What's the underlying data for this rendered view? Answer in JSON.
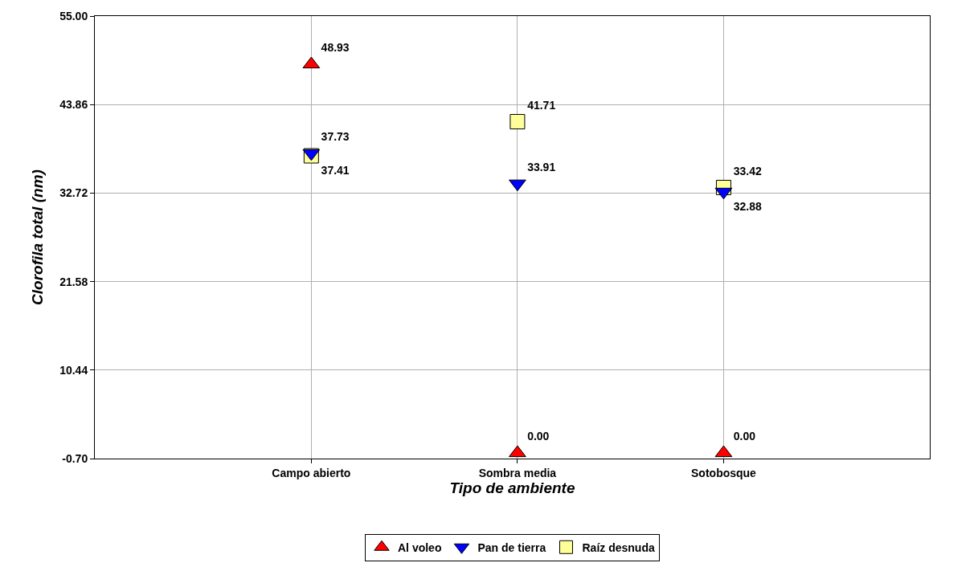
{
  "chart_data": {
    "type": "scatter",
    "xlabel": "Tipo de ambiente",
    "ylabel": "Clorofila total (nm)",
    "categories": [
      "Campo abierto",
      "Sombra media",
      "Sotobosque"
    ],
    "series": [
      {
        "name": "Al voleo",
        "color": "#ff0000",
        "marker": "triangle",
        "values": [
          48.93,
          0.0,
          0.0
        ],
        "value_labels": [
          "48.93",
          "0.00",
          "0.00"
        ]
      },
      {
        "name": "Pan de tierra",
        "color": "#0000ff",
        "marker": "triangle-down",
        "values": [
          37.73,
          33.91,
          32.88
        ],
        "value_labels": [
          "37.73",
          "33.91",
          "32.88"
        ]
      },
      {
        "name": "Raíz desnuda",
        "color": "#ffff99",
        "marker": "square",
        "values": [
          37.41,
          41.71,
          33.42
        ],
        "value_labels": [
          "37.41",
          "41.71",
          "33.42"
        ]
      }
    ],
    "ylim": [
      -0.7,
      55.0
    ],
    "yticks": [
      {
        "value": -0.7,
        "label": "-0.70"
      },
      {
        "value": 10.44,
        "label": "10.44"
      },
      {
        "value": 21.58,
        "label": "21.58"
      },
      {
        "value": 32.72,
        "label": "32.72"
      },
      {
        "value": 43.86,
        "label": "43.86"
      },
      {
        "value": 55.0,
        "label": "55.00"
      }
    ],
    "grid": true,
    "legend": "bottom"
  }
}
